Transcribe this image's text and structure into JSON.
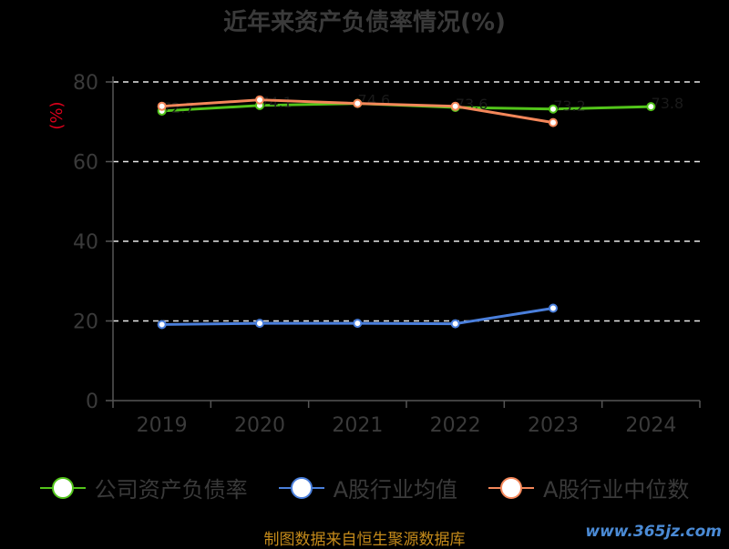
{
  "chart_data": {
    "type": "line",
    "title": "近年来资产负债率情况(%)",
    "ylabel": "(%)",
    "categories": [
      "2019",
      "2020",
      "2021",
      "2022",
      "2023",
      "2024"
    ],
    "ylim": [
      0,
      80
    ],
    "yticks": [
      0,
      20,
      40,
      60,
      80
    ],
    "grid": true,
    "legend_position": "bottom",
    "series": [
      {
        "name": "公司资产负债率",
        "color": "#52c41a",
        "values": [
          72.7,
          74.1,
          74.6,
          73.6,
          73.2,
          73.8
        ],
        "labels": [
          "72.7",
          "74.1",
          "74.6",
          "73.6",
          "73.2",
          "73.8"
        ]
      },
      {
        "name": "A股行业均值",
        "color": "#4a7fdc",
        "values": [
          19.1,
          19.4,
          19.4,
          19.3,
          23.2,
          null
        ]
      },
      {
        "name": "A股行业中位数",
        "color": "#f4875a",
        "values": [
          73.9,
          75.5,
          74.6,
          73.9,
          69.8,
          null
        ]
      }
    ]
  },
  "source_text": "制图数据来自恒生聚源数据库",
  "watermark": "www.365jz.com"
}
